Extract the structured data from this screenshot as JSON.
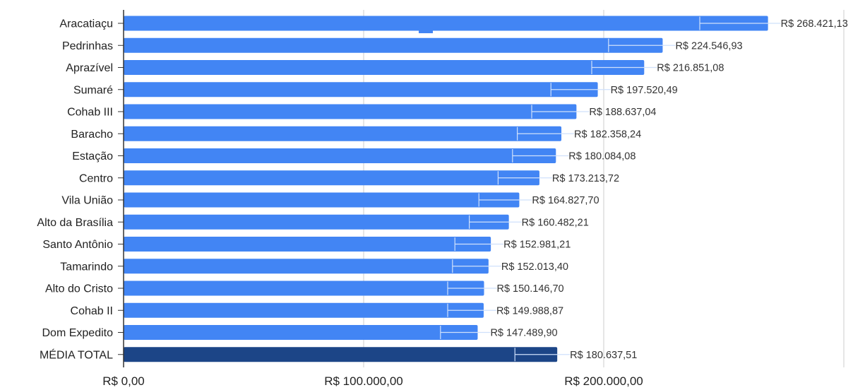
{
  "chart_data": {
    "type": "bar",
    "orientation": "horizontal",
    "title": "",
    "xlabel": "",
    "ylabel": "",
    "xlim": [
      0,
      300000
    ],
    "grid": true,
    "categories": [
      "Aracatiaçu",
      "Pedrinhas",
      "Aprazível",
      "Sumaré",
      "Cohab III",
      "Baracho",
      "Estação",
      "Centro",
      "Vila União",
      "Alto da Brasília",
      "Santo Antônio",
      "Tamarindo",
      "Alto do Cristo",
      "Cohab II",
      "Dom Expedito",
      "MÉDIA TOTAL"
    ],
    "values": [
      268421.13,
      224546.93,
      216851.08,
      197520.49,
      188637.04,
      182358.24,
      180084.08,
      173213.72,
      164827.7,
      160482.21,
      152981.21,
      152013.4,
      150146.7,
      149988.87,
      147489.9,
      180637.51
    ],
    "value_labels": [
      "R$ 268.421,13",
      "R$ 224.546,93",
      "R$ 216.851,08",
      "R$ 197.520,49",
      "R$ 188.637,04",
      "R$ 182.358,24",
      "R$ 180.084,08",
      "R$ 173.213,72",
      "R$ 164.827,70",
      "R$ 160.482,21",
      "R$ 152.981,21",
      "R$ 152.013,40",
      "R$ 150.146,70",
      "R$ 149.988,87",
      "R$ 147.489,90",
      "R$ 180.637,51"
    ],
    "error_low": [
      240000,
      202000,
      195000,
      178000,
      170000,
      164000,
      162000,
      156000,
      148000,
      144000,
      138000,
      137000,
      135000,
      135000,
      132000,
      163000
    ],
    "xticks": [
      0,
      100000,
      200000
    ],
    "xtick_labels": [
      "R$ 0,00",
      "R$ 100.000,00",
      "R$ 200.000,00"
    ],
    "colors": {
      "bar": "#4285f4",
      "total_bar": "#1c4587",
      "grid": "#cccccc",
      "axis": "#333333",
      "error": "#cfe0fb"
    }
  }
}
